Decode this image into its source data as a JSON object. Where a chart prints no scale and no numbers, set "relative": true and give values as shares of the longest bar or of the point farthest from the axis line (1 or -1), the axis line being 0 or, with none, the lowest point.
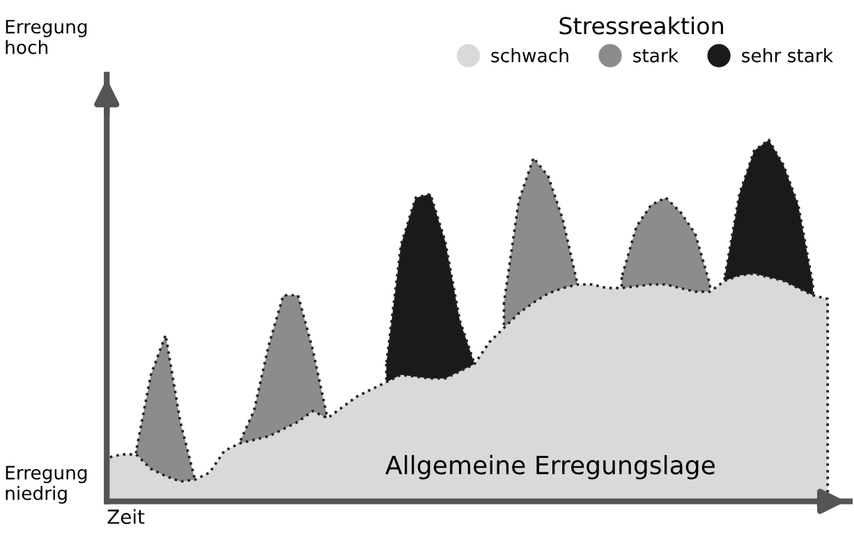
{
  "chart_data": {
    "type": "area",
    "relative": true,
    "xlabel": "Zeit",
    "legend_title": "Stressreaktion",
    "legend": "top right",
    "line_style": "dotted",
    "annotations": [
      "Erregung\nhoch",
      "Erregung\nniedrig",
      "Allgemeine Erregungslage"
    ],
    "categories": [
      null,
      null,
      null,
      null,
      null,
      null,
      null,
      null,
      null,
      null,
      null,
      null,
      null,
      null,
      null,
      null,
      null,
      null,
      null,
      null,
      null,
      null,
      null,
      null,
      null,
      null,
      null,
      null,
      null,
      null,
      null,
      null,
      null,
      null,
      null,
      null,
      null,
      null,
      null,
      null,
      null,
      null,
      null,
      null,
      null,
      null,
      null,
      null,
      null,
      null
    ],
    "series": [
      {
        "name": "stark",
        "color": "#8c8c8c",
        "values": [
          null,
          null,
          0.14,
          0.35,
          0.46,
          0.22,
          0.06,
          null,
          null,
          0.16,
          0.25,
          0.43,
          0.57,
          0.57,
          0.42,
          0.23,
          null,
          null,
          null,
          null,
          null,
          null,
          null,
          null,
          null,
          null,
          null,
          0.55,
          0.83,
          0.95,
          0.9,
          0.78,
          0.6,
          null,
          null,
          0.62,
          0.76,
          0.82,
          0.84,
          0.8,
          0.74,
          0.6,
          null,
          null,
          null,
          null,
          null,
          null,
          null,
          null
        ]
      },
      {
        "name": "sehr stark",
        "color": "#1a1a1a",
        "values": [
          null,
          null,
          null,
          null,
          null,
          null,
          null,
          null,
          null,
          null,
          null,
          null,
          null,
          null,
          null,
          null,
          null,
          null,
          null,
          0.38,
          0.71,
          0.84,
          0.85,
          0.72,
          0.5,
          0.38,
          null,
          null,
          null,
          null,
          null,
          null,
          null,
          null,
          null,
          null,
          null,
          null,
          null,
          null,
          null,
          null,
          0.62,
          0.85,
          0.97,
          1,
          0.93,
          0.82,
          0.6,
          null
        ]
      },
      {
        "name": "schwach",
        "color": "#d9d9d9",
        "values": [
          0.12,
          0.13,
          0.13,
          0.09,
          0.07,
          0.055,
          0.06,
          0.08,
          0.14,
          0.16,
          0.17,
          0.18,
          0.2,
          0.22,
          0.25,
          0.23,
          0.26,
          0.29,
          0.31,
          0.33,
          0.35,
          0.345,
          0.34,
          0.34,
          0.36,
          0.38,
          0.44,
          0.48,
          0.52,
          0.55,
          0.575,
          0.59,
          0.6,
          0.6,
          0.59,
          0.59,
          0.595,
          0.6,
          0.6,
          0.59,
          0.58,
          0.58,
          0.61,
          0.625,
          0.63,
          0.62,
          0.61,
          0.59,
          0.57,
          0.56
        ]
      }
    ]
  }
}
